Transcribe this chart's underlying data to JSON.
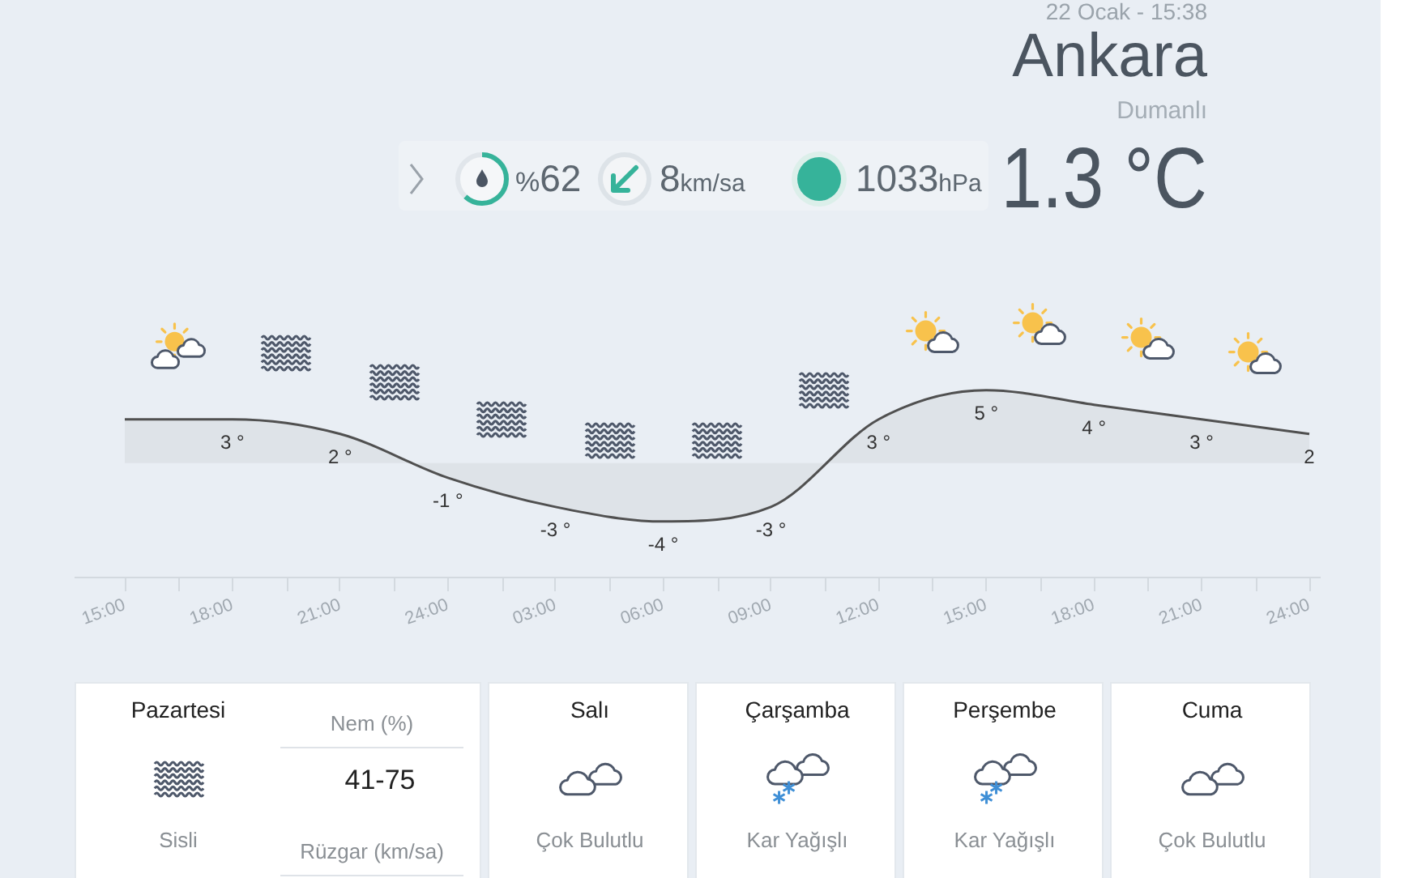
{
  "chart_data": [
    {
      "type": "other",
      "title": "Ankara",
      "subtitle": "Dumanlı",
      "annotations": [
        "22 Ocak - 15:38",
        "%62",
        "8km/sa",
        "1033hPa",
        "1.3 °C"
      ]
    },
    {
      "type": "area",
      "categories": [
        "15:00",
        "18:00",
        "21:00",
        "24:00",
        "03:00",
        "06:00",
        "09:00",
        "12:00",
        "15:00",
        "18:00",
        "21:00",
        "24:00"
      ],
      "values": [
        3,
        3,
        2,
        -1,
        -3,
        -4,
        -3,
        3,
        5,
        4,
        3,
        2
      ],
      "color": "#505050",
      "value_labels": [
        null,
        "3 °",
        "2 °",
        "-1 °",
        "-3 °",
        "-4 °",
        "-3 °",
        "3 °",
        "5 °",
        "4 °",
        "3 °",
        "2"
      ],
      "marker": "none",
      "tick_labels": "x"
    },
    {
      "type": "other",
      "categories": [
        "Pazartesi",
        "Salı",
        "Çarşamba",
        "Perşembe",
        "Cuma"
      ],
      "annotations": [
        "Sisli",
        "Çok Bulutlu",
        "Kar Yağışlı",
        "Kar Yağışlı",
        "Çok Bulutlu",
        "Nem (%)",
        "41-75",
        "Rüzgar (km/sa)"
      ]
    }
  ]
}
